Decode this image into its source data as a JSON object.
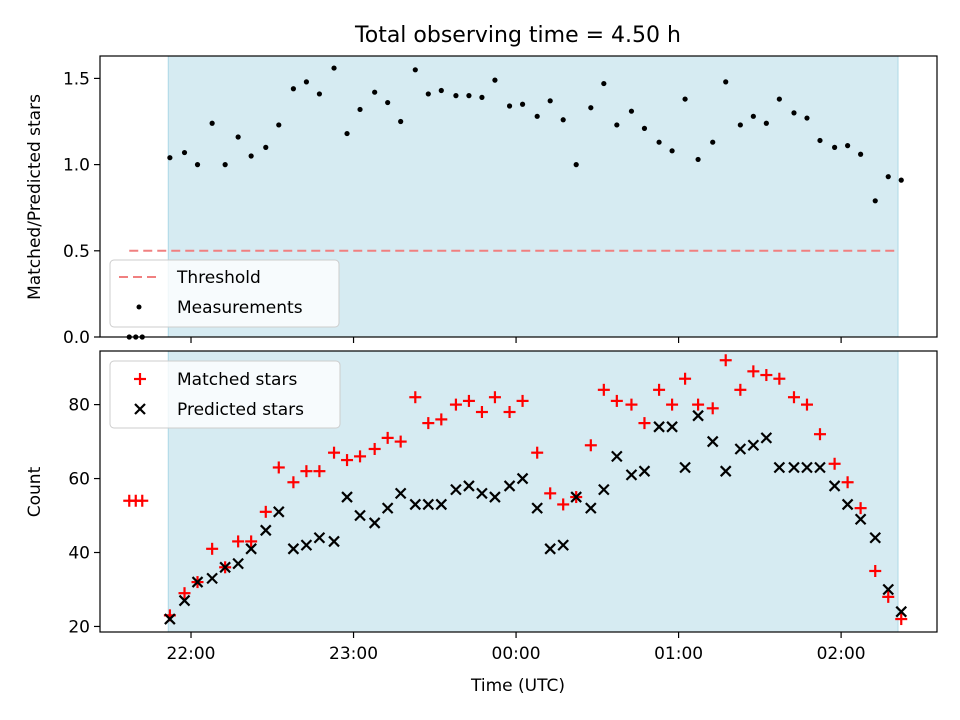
{
  "title": "Total observing time = 4.50 h",
  "colors": {
    "span": "#add8e6",
    "threshold": "#f08080",
    "measure": "#000000",
    "matched": "#ff0000",
    "predicted": "#000000"
  },
  "chart_data": [
    {
      "type": "scatter",
      "xlabel": "",
      "ylabel": "Matched/Predicted stars",
      "ylim": [
        0,
        1.63
      ],
      "yticks": [
        "0.0",
        "0.5",
        "1.0",
        "1.5"
      ],
      "xlim_hours": [
        -2.56,
        2.59
      ],
      "x_unit": "hours relative to 00:00 UTC",
      "grid": false,
      "legend": {
        "position": "lower-left",
        "entries": [
          "Threshold",
          "Measurements"
        ]
      },
      "shaded_span": [
        -2.14,
        2.35
      ],
      "threshold": {
        "name": "Threshold",
        "value": 0.5,
        "x_range": [
          -2.38,
          2.34
        ]
      },
      "series": [
        {
          "name": "Measurements",
          "x": [
            -2.38,
            -2.34,
            -2.3,
            -2.13,
            -2.04,
            -1.96,
            -1.87,
            -1.79,
            -1.71,
            -1.63,
            -1.54,
            -1.46,
            -1.37,
            -1.29,
            -1.21,
            -1.12,
            -1.04,
            -0.96,
            -0.87,
            -0.79,
            -0.71,
            -0.62,
            -0.54,
            -0.46,
            -0.37,
            -0.29,
            -0.21,
            -0.13,
            -0.04,
            0.04,
            0.13,
            0.21,
            0.29,
            0.37,
            0.46,
            0.54,
            0.62,
            0.71,
            0.79,
            0.88,
            0.96,
            1.04,
            1.12,
            1.21,
            1.29,
            1.38,
            1.46,
            1.54,
            1.62,
            1.71,
            1.79,
            1.87,
            1.96,
            2.04,
            2.12,
            2.21,
            2.29,
            2.37
          ],
          "y": [
            0.0,
            0.0,
            0.0,
            1.04,
            1.07,
            1.0,
            1.24,
            1.0,
            1.16,
            1.05,
            1.1,
            1.23,
            1.44,
            1.48,
            1.41,
            1.56,
            1.18,
            1.32,
            1.42,
            1.36,
            1.25,
            1.55,
            1.41,
            1.43,
            1.4,
            1.4,
            1.39,
            1.49,
            1.34,
            1.35,
            1.28,
            1.37,
            1.26,
            1.0,
            1.33,
            1.47,
            1.23,
            1.31,
            1.21,
            1.13,
            1.08,
            1.38,
            1.03,
            1.13,
            1.48,
            1.23,
            1.28,
            1.24,
            1.38,
            1.3,
            1.27,
            1.14,
            1.1,
            1.11,
            1.06,
            0.79,
            0.93,
            0.91
          ]
        }
      ]
    },
    {
      "type": "scatter",
      "xlabel": "Time (UTC)",
      "ylabel": "Count",
      "ylim": [
        18.5,
        94.5
      ],
      "yticks": [
        "20",
        "40",
        "60",
        "80"
      ],
      "xlim_hours": [
        -2.56,
        2.59
      ],
      "x_unit": "hours relative to 00:00 UTC",
      "xticks": [
        "22:00",
        "23:00",
        "00:00",
        "01:00",
        "02:00"
      ],
      "grid": false,
      "legend": {
        "position": "top-left",
        "entries": [
          "Matched stars",
          "Predicted stars"
        ]
      },
      "shaded_span": [
        -2.14,
        2.35
      ],
      "series": [
        {
          "name": "Matched stars",
          "x": [
            -2.38,
            -2.34,
            -2.3,
            -2.13,
            -2.04,
            -1.96,
            -1.87,
            -1.79,
            -1.71,
            -1.63,
            -1.54,
            -1.46,
            -1.37,
            -1.29,
            -1.21,
            -1.12,
            -1.04,
            -0.96,
            -0.87,
            -0.79,
            -0.71,
            -0.62,
            -0.54,
            -0.46,
            -0.37,
            -0.29,
            -0.21,
            -0.13,
            -0.04,
            0.04,
            0.13,
            0.21,
            0.29,
            0.37,
            0.46,
            0.54,
            0.62,
            0.71,
            0.79,
            0.88,
            0.96,
            1.04,
            1.12,
            1.21,
            1.29,
            1.38,
            1.46,
            1.54,
            1.62,
            1.71,
            1.79,
            1.87,
            1.96,
            2.04,
            2.12,
            2.21,
            2.29,
            2.37
          ],
          "y": [
            54,
            54,
            54,
            23,
            29,
            32,
            41,
            36,
            43,
            43,
            51,
            63,
            59,
            62,
            62,
            67,
            65,
            66,
            68,
            71,
            70,
            82,
            75,
            76,
            80,
            81,
            78,
            82,
            78,
            81,
            67,
            56,
            53,
            55,
            69,
            84,
            81,
            80,
            75,
            84,
            80,
            87,
            80,
            79,
            92,
            84,
            89,
            88,
            87,
            82,
            80,
            72,
            64,
            59,
            52,
            35,
            28,
            22
          ]
        },
        {
          "name": "Predicted stars",
          "x": [
            -2.13,
            -2.04,
            -1.96,
            -1.87,
            -1.79,
            -1.71,
            -1.63,
            -1.54,
            -1.46,
            -1.37,
            -1.29,
            -1.21,
            -1.12,
            -1.04,
            -0.96,
            -0.87,
            -0.79,
            -0.71,
            -0.62,
            -0.54,
            -0.46,
            -0.37,
            -0.29,
            -0.21,
            -0.13,
            -0.04,
            0.04,
            0.13,
            0.21,
            0.29,
            0.37,
            0.46,
            0.54,
            0.62,
            0.71,
            0.79,
            0.88,
            0.96,
            1.04,
            1.12,
            1.21,
            1.29,
            1.38,
            1.46,
            1.54,
            1.62,
            1.71,
            1.79,
            1.87,
            1.96,
            2.04,
            2.12,
            2.21,
            2.29,
            2.37
          ],
          "y": [
            22,
            27,
            32,
            33,
            36,
            37,
            41,
            46,
            51,
            41,
            42,
            44,
            43,
            55,
            50,
            48,
            52,
            56,
            53,
            53,
            53,
            57,
            58,
            56,
            55,
            58,
            60,
            52,
            41,
            42,
            55,
            52,
            57,
            66,
            61,
            62,
            74,
            74,
            63,
            77,
            70,
            62,
            68,
            69,
            71,
            63,
            63,
            63,
            63,
            58,
            53,
            49,
            44,
            30,
            24
          ]
        }
      ]
    }
  ]
}
